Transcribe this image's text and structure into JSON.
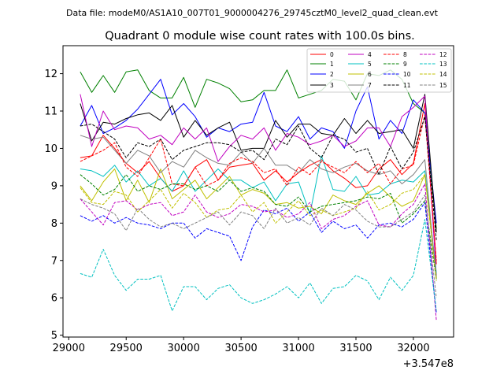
{
  "chart_data": {
    "type": "line",
    "suptitle": "Data file: modeM0/AS1A10_007T01_9000004276_29745cztM0_level2_quad_clean.evt",
    "title": "Quadrant 0 module wise count rates with 100.0s bins.",
    "xlabel": "",
    "ylabel": "",
    "x_offset_label": "+3.547e8",
    "xlim": [
      28950,
      32350
    ],
    "ylim": [
      4.95,
      12.75
    ],
    "xticks": [
      29000,
      29500,
      30000,
      30500,
      31000,
      31500,
      32000
    ],
    "yticks": [
      5,
      6,
      7,
      8,
      9,
      10,
      11,
      12
    ],
    "legend_position": "top-right",
    "x": [
      29100,
      29200,
      29300,
      29400,
      29500,
      29600,
      29700,
      29800,
      29900,
      30000,
      30100,
      30200,
      30300,
      30400,
      30500,
      30600,
      30700,
      30800,
      30900,
      31000,
      31100,
      31200,
      31300,
      31400,
      31500,
      31600,
      31700,
      31800,
      31900,
      32000,
      32100,
      32200
    ],
    "series": [
      {
        "name": "0",
        "color": "#ff0000",
        "dash": "solid",
        "values": [
          9.75,
          9.8,
          10.35,
          10.0,
          9.6,
          9.35,
          9.65,
          9.2,
          8.85,
          9.0,
          9.5,
          9.7,
          9.15,
          9.5,
          9.55,
          9.6,
          9.15,
          9.4,
          9.1,
          9.35,
          9.55,
          9.7,
          9.4,
          9.2,
          8.95,
          9.0,
          9.45,
          9.7,
          9.3,
          9.6,
          11.2,
          6.9
        ]
      },
      {
        "name": "1",
        "color": "#008000",
        "dash": "solid",
        "values": [
          12.05,
          11.5,
          11.95,
          11.5,
          12.05,
          12.1,
          11.55,
          11.35,
          11.35,
          11.9,
          11.1,
          11.85,
          11.75,
          11.6,
          11.25,
          11.3,
          11.55,
          11.55,
          12.1,
          11.35,
          11.45,
          11.55,
          11.85,
          11.8,
          11.3,
          12.0,
          11.95,
          12.1,
          11.85,
          11.2,
          10.95,
          7.85
        ]
      },
      {
        "name": "2",
        "color": "#0000ff",
        "dash": "solid",
        "values": [
          10.6,
          11.15,
          10.4,
          10.55,
          10.75,
          11.05,
          11.45,
          11.85,
          10.9,
          11.2,
          10.85,
          10.3,
          10.55,
          10.45,
          10.65,
          10.7,
          11.5,
          10.6,
          10.45,
          10.85,
          10.25,
          10.55,
          10.45,
          10.0,
          11.0,
          11.65,
          10.25,
          10.75,
          10.4,
          11.3,
          10.95,
          8.0
        ]
      },
      {
        "name": "3",
        "color": "#000000",
        "dash": "solid",
        "values": [
          11.2,
          10.2,
          10.7,
          10.65,
          10.8,
          10.9,
          10.95,
          10.75,
          11.15,
          10.3,
          10.75,
          10.35,
          10.55,
          10.7,
          9.95,
          10.0,
          10.0,
          10.75,
          10.3,
          10.65,
          10.65,
          10.4,
          10.35,
          10.8,
          10.4,
          10.75,
          10.4,
          10.45,
          10.5,
          10.0,
          11.45,
          7.75
        ]
      },
      {
        "name": "4",
        "color": "#c000c0",
        "dash": "solid",
        "values": [
          11.45,
          10.05,
          11.0,
          10.5,
          10.6,
          10.55,
          10.25,
          10.35,
          10.1,
          10.55,
          10.25,
          10.55,
          9.65,
          10.05,
          10.35,
          10.25,
          10.55,
          9.95,
          10.4,
          10.3,
          10.1,
          10.2,
          10.35,
          10.05,
          10.2,
          10.55,
          10.55,
          10.05,
          10.85,
          11.1,
          11.4,
          6.6
        ]
      },
      {
        "name": "5",
        "color": "#00c0c0",
        "dash": "solid",
        "values": [
          9.45,
          9.4,
          9.25,
          9.55,
          9.1,
          9.4,
          9.0,
          9.2,
          8.85,
          9.4,
          8.85,
          9.15,
          9.45,
          9.15,
          9.15,
          8.95,
          9.1,
          8.6,
          9.05,
          9.1,
          8.25,
          9.8,
          8.9,
          8.85,
          9.25,
          8.75,
          8.8,
          9.05,
          9.15,
          9.1,
          9.4,
          6.65
        ]
      },
      {
        "name": "6",
        "color": "#c0c000",
        "dash": "solid",
        "values": [
          9.0,
          8.6,
          9.1,
          9.45,
          8.6,
          9.15,
          8.55,
          9.45,
          8.65,
          8.9,
          9.15,
          8.65,
          8.95,
          9.25,
          8.75,
          8.9,
          8.8,
          8.5,
          8.55,
          8.4,
          8.45,
          8.25,
          8.75,
          8.6,
          8.5,
          8.8,
          9.0,
          8.7,
          8.45,
          8.6,
          9.3,
          6.55
        ]
      },
      {
        "name": "7",
        "color": "#808080",
        "dash": "solid",
        "values": [
          10.35,
          10.25,
          10.3,
          9.95,
          9.6,
          9.95,
          9.8,
          9.35,
          9.65,
          9.5,
          9.95,
          9.75,
          9.6,
          9.55,
          9.9,
          9.6,
          10.0,
          9.55,
          9.55,
          9.35,
          9.7,
          9.45,
          9.35,
          9.5,
          9.6,
          9.4,
          9.3,
          9.4,
          9.05,
          9.3,
          9.7,
          6.5
        ]
      },
      {
        "name": "8",
        "color": "#ff0000",
        "dash": "dashed",
        "values": [
          9.65,
          9.8,
          9.95,
          10.15,
          9.5,
          9.25,
          9.75,
          10.25,
          9.05,
          9.0,
          9.5,
          9.0,
          9.15,
          9.6,
          9.75,
          9.65,
          9.35,
          9.45,
          9.0,
          9.5,
          9.3,
          9.65,
          9.5,
          9.35,
          9.65,
          9.35,
          9.6,
          9.05,
          9.45,
          9.55,
          10.9,
          7.0
        ]
      },
      {
        "name": "9",
        "color": "#008000",
        "dash": "dashed",
        "values": [
          9.3,
          9.05,
          8.75,
          8.9,
          9.3,
          8.85,
          9.0,
          8.9,
          9.05,
          9.05,
          8.9,
          9.0,
          8.85,
          9.15,
          8.85,
          8.95,
          8.85,
          8.5,
          8.45,
          8.7,
          8.3,
          8.45,
          8.5,
          8.55,
          8.6,
          8.7,
          8.65,
          8.8,
          8.0,
          8.25,
          8.6,
          6.5
        ]
      },
      {
        "name": "10",
        "color": "#0000ff",
        "dash": "dashed",
        "values": [
          8.2,
          8.05,
          8.2,
          8.0,
          8.15,
          8.0,
          7.95,
          7.85,
          8.0,
          8.0,
          7.6,
          7.85,
          7.75,
          7.65,
          7.0,
          7.9,
          8.35,
          8.25,
          8.4,
          8.05,
          8.3,
          7.75,
          8.05,
          7.85,
          7.95,
          7.6,
          7.95,
          8.0,
          7.9,
          8.1,
          8.55,
          5.6
        ]
      },
      {
        "name": "11",
        "color": "#000000",
        "dash": "dashed",
        "values": [
          10.6,
          10.65,
          10.45,
          10.25,
          9.75,
          10.15,
          10.05,
          10.25,
          9.7,
          9.95,
          10.05,
          10.15,
          10.15,
          10.1,
          9.9,
          9.95,
          9.7,
          10.25,
          10.1,
          10.6,
          10.0,
          9.75,
          10.35,
          10.25,
          9.9,
          10.0,
          9.3,
          10.05,
          9.45,
          9.9,
          10.85,
          7.55
        ]
      },
      {
        "name": "12",
        "color": "#c000c0",
        "dash": "dashed",
        "values": [
          8.65,
          8.3,
          7.95,
          8.55,
          8.6,
          8.35,
          8.5,
          8.55,
          8.2,
          8.3,
          8.75,
          8.3,
          8.15,
          8.25,
          8.5,
          8.45,
          8.3,
          8.35,
          8.15,
          8.25,
          8.55,
          7.85,
          8.1,
          8.2,
          8.45,
          8.6,
          7.95,
          7.9,
          8.25,
          8.5,
          9.05,
          5.4
        ]
      },
      {
        "name": "13",
        "color": "#00c0c0",
        "dash": "dashed",
        "values": [
          6.65,
          6.55,
          7.3,
          6.6,
          6.2,
          6.5,
          6.5,
          6.6,
          5.65,
          6.3,
          6.3,
          5.95,
          6.25,
          6.35,
          6.0,
          5.85,
          5.95,
          6.1,
          6.3,
          6.0,
          6.4,
          5.85,
          6.25,
          6.3,
          6.6,
          6.45,
          5.95,
          6.55,
          6.2,
          6.6,
          8.1,
          5.65
        ]
      },
      {
        "name": "14",
        "color": "#c0c000",
        "dash": "dashed",
        "values": [
          8.95,
          8.55,
          8.5,
          8.85,
          8.75,
          8.3,
          8.6,
          8.9,
          8.4,
          8.8,
          8.55,
          8.15,
          8.35,
          8.4,
          8.75,
          8.3,
          8.55,
          8.0,
          8.3,
          8.6,
          8.2,
          8.35,
          8.2,
          8.3,
          8.4,
          8.85,
          8.35,
          8.5,
          8.8,
          8.9,
          9.3,
          6.45
        ]
      },
      {
        "name": "15",
        "color": "#808080",
        "dash": "dashed",
        "values": [
          8.65,
          8.5,
          8.4,
          8.25,
          7.8,
          8.4,
          8.1,
          7.9,
          8.0,
          7.85,
          8.0,
          8.15,
          8.3,
          7.95,
          8.3,
          8.2,
          7.85,
          8.4,
          8.0,
          8.15,
          7.95,
          8.4,
          8.2,
          8.5,
          8.35,
          8.05,
          7.9,
          7.9,
          8.1,
          8.3,
          8.75,
          6.0
        ]
      }
    ]
  }
}
